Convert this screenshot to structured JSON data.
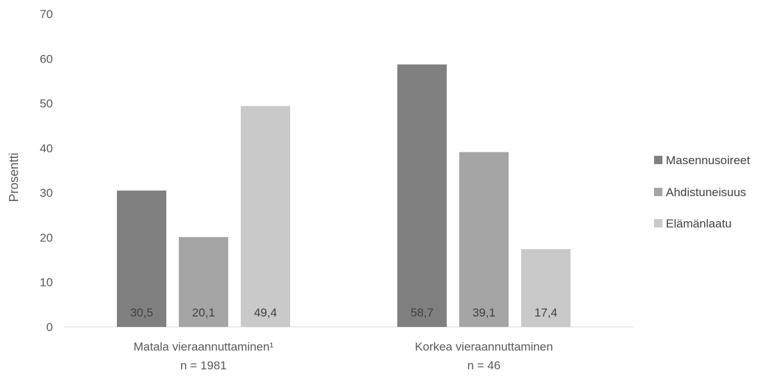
{
  "chart_data": {
    "type": "bar",
    "ylabel": "Prosentti",
    "ylim": [
      0,
      70
    ],
    "yticks": [
      0,
      10,
      20,
      30,
      40,
      50,
      60,
      70
    ],
    "grid": false,
    "legend_position": "right",
    "categories": [
      {
        "label": "Matala vieraannuttaminen¹",
        "sublabel": "n = 1981"
      },
      {
        "label": "Korkea vieraannuttaminen",
        "sublabel": "n = 46"
      }
    ],
    "series": [
      {
        "name": "Masennusoireet",
        "color": "#808080",
        "values": [
          30.5,
          58.7
        ],
        "labels": [
          "30,5",
          "58,7"
        ]
      },
      {
        "name": "Ahdistuneisuus",
        "color": "#a5a5a5",
        "values": [
          20.1,
          39.1
        ],
        "labels": [
          "20,1",
          "39,1"
        ]
      },
      {
        "name": "Elämänlaatu",
        "color": "#c9c9c9",
        "values": [
          49.4,
          17.4
        ],
        "labels": [
          "49,4",
          "17,4"
        ]
      }
    ]
  }
}
